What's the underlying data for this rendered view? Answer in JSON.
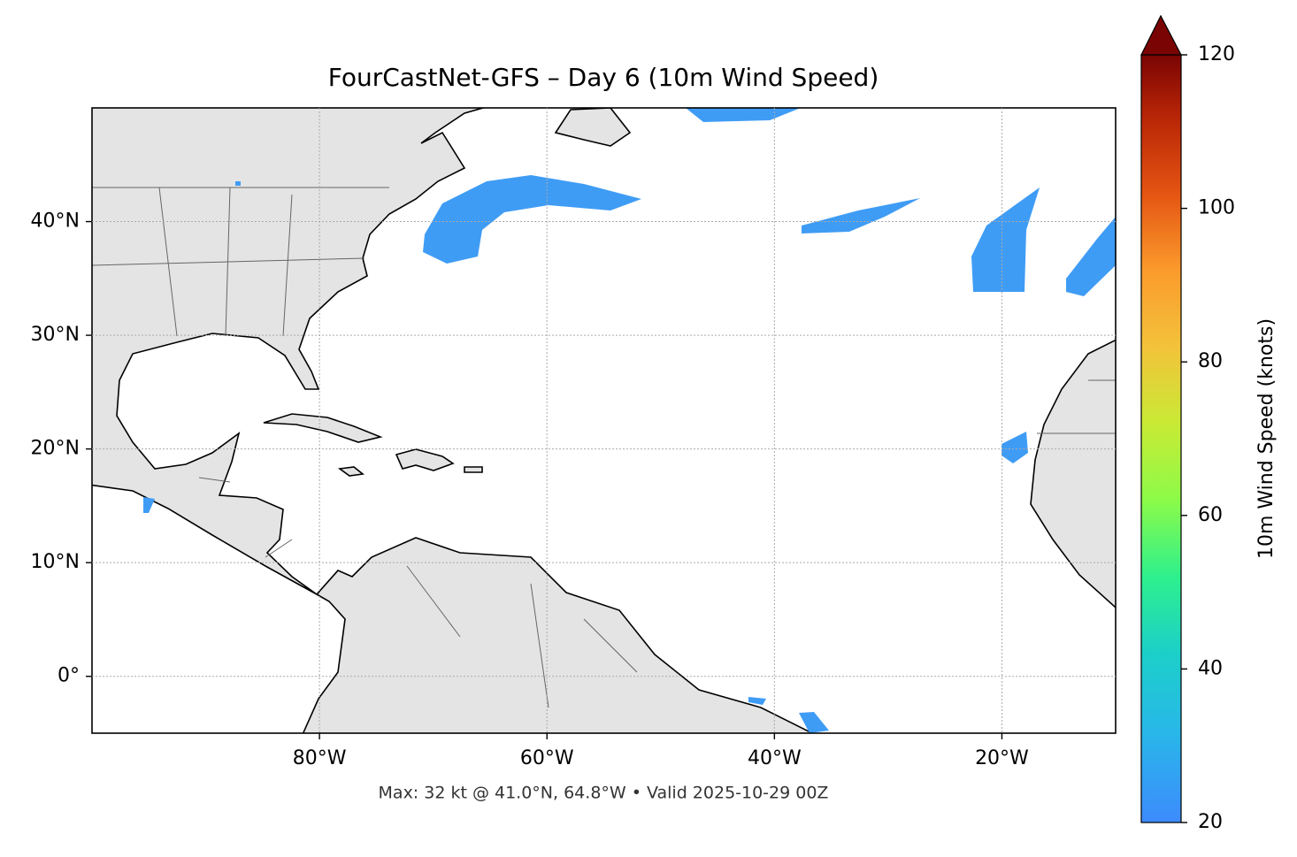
{
  "chart_data": {
    "type": "map",
    "title": "FourCastNet-GFS – Day 6 (10m Wind Speed)",
    "footer": "Max: 32 kt @ 41.0°N, 64.8°W • Valid 2025-10-29 00Z",
    "xlim": [
      -100,
      -10
    ],
    "xticks": [
      {
        "value": -80,
        "label": "80°W"
      },
      {
        "value": -60,
        "label": "60°W"
      },
      {
        "value": -40,
        "label": "40°W"
      },
      {
        "value": -20,
        "label": "20°W"
      }
    ],
    "ylim": [
      -5,
      50
    ],
    "yticks": [
      {
        "value": 0,
        "label": "0°"
      },
      {
        "value": 10,
        "label": "10°N"
      },
      {
        "value": 20,
        "label": "20°N"
      },
      {
        "value": 30,
        "label": "30°N"
      },
      {
        "value": 40,
        "label": "40°N"
      }
    ],
    "grid": true,
    "colorbar": {
      "label": "10m Wind Speed (knots)",
      "lim": [
        20,
        120
      ],
      "ticks": [
        20,
        40,
        60,
        80,
        100,
        120
      ]
    }
  }
}
